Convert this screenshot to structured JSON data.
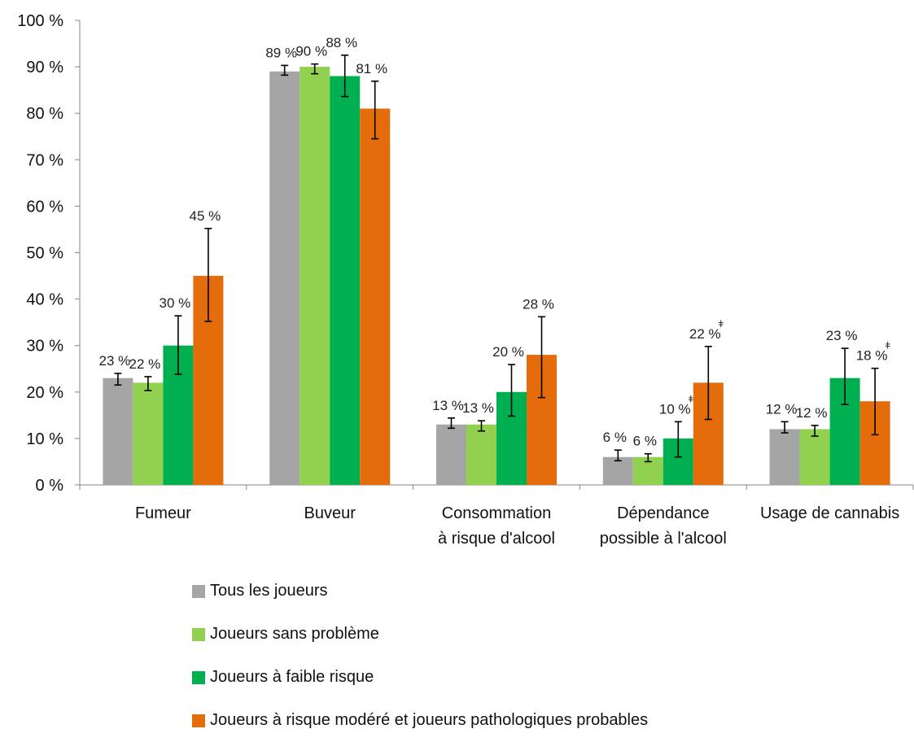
{
  "chart_data": {
    "type": "bar",
    "y_unit_suffix": " %",
    "ylim": [
      0,
      100
    ],
    "yticks": [
      0,
      10,
      20,
      30,
      40,
      50,
      60,
      70,
      80,
      90,
      100
    ],
    "ytick_labels": [
      "0 %",
      "10 %",
      "20 %",
      "30 %",
      "40 %",
      "50 %",
      "60 %",
      "70 %",
      "80 %",
      "90 %",
      "100 %"
    ],
    "categories": [
      [
        "Fumeur"
      ],
      [
        "Buveur"
      ],
      [
        "Consommation",
        "à risque d'alcool"
      ],
      [
        "Dépendance",
        "possible à l'alcool"
      ],
      [
        "Usage de cannabis"
      ]
    ],
    "series": [
      {
        "name": "Tous les joueurs",
        "color": "#a5a5a5",
        "values": [
          23,
          89,
          13,
          6,
          12
        ],
        "value_labels": [
          "23 %",
          "89 %",
          "13 %",
          "6 %",
          "12 %"
        ],
        "flags": [
          "",
          "",
          "",
          "",
          ""
        ],
        "errors": [
          [
            21.5,
            24.0
          ],
          [
            88.2,
            90.3
          ],
          [
            12.2,
            14.4
          ],
          [
            5.2,
            7.5
          ],
          [
            11.2,
            13.6
          ]
        ]
      },
      {
        "name": "Joueurs sans problème",
        "color": "#92d050",
        "values": [
          22,
          90,
          13,
          6,
          12
        ],
        "value_labels": [
          "22 %",
          "90 %",
          "13 %",
          "6 %",
          "12 %"
        ],
        "flags": [
          "",
          "",
          "",
          "",
          ""
        ],
        "errors": [
          [
            20.3,
            23.3
          ],
          [
            88.5,
            90.6
          ],
          [
            11.6,
            13.8
          ],
          [
            5.0,
            6.7
          ],
          [
            10.5,
            12.8
          ]
        ]
      },
      {
        "name": "Joueurs à faible risque",
        "color": "#00b050",
        "values": [
          30,
          88,
          20,
          10,
          23
        ],
        "value_labels": [
          "30 %",
          "88 %",
          "20 %",
          "10 %",
          "23 %"
        ],
        "flags": [
          "",
          "",
          "",
          "ǂ",
          ""
        ],
        "errors": [
          [
            23.8,
            36.4
          ],
          [
            83.6,
            92.5
          ],
          [
            14.8,
            25.9
          ],
          [
            6.0,
            13.6
          ],
          [
            17.3,
            29.4
          ]
        ]
      },
      {
        "name": "Joueurs à risque modéré et joueurs pathologiques probables",
        "color": "#e46c0a",
        "values": [
          45,
          81,
          28,
          22,
          18
        ],
        "value_labels": [
          "45 %",
          "81 %",
          "28 %",
          "22 %",
          "18 %"
        ],
        "flags": [
          "",
          "",
          "",
          "ǂ",
          "ǂ"
        ],
        "errors": [
          [
            35.2,
            55.2
          ],
          [
            74.5,
            86.9
          ],
          [
            18.8,
            36.2
          ],
          [
            14.1,
            29.8
          ],
          [
            10.8,
            25.1
          ]
        ]
      }
    ],
    "legend_position": "bottom",
    "grid": false
  }
}
